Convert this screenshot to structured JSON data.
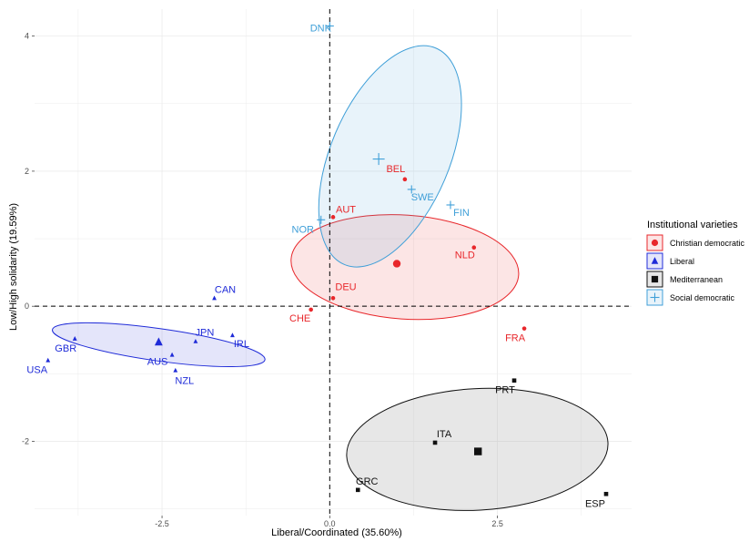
{
  "chart_data": {
    "type": "scatter",
    "xlabel": "Liberal/Coordinated (35.60%)",
    "ylabel": "Low/High solidarity (19.59%)",
    "xlim": [
      -4.4,
      4.5
    ],
    "ylim": [
      -3.1,
      4.4
    ],
    "x_ticks": [
      -2.5,
      0,
      2.5
    ],
    "x_tick_labels": [
      "-2.5",
      "0.0",
      "2.5"
    ],
    "y_ticks": [
      -2,
      0,
      2,
      4
    ],
    "y_tick_labels": [
      "-2",
      "0",
      "2",
      "4"
    ],
    "reference_lines": {
      "x": 0,
      "y": 0
    },
    "legend": {
      "title": "Institutional varieties",
      "position": "right",
      "entries": [
        "Christian democratic",
        "Liberal",
        "Mediterranean",
        "Social democratic"
      ]
    },
    "series": [
      {
        "name": "Christian democratic",
        "color": "#e8272b",
        "shape": "circle",
        "points": [
          {
            "label": "BEL",
            "x": 1.12,
            "y": 1.88
          },
          {
            "label": "AUT",
            "x": 0.05,
            "y": 1.32
          },
          {
            "label": "NLD",
            "x": 2.15,
            "y": 0.87
          },
          {
            "label": "DEU",
            "x": 0.05,
            "y": 0.12
          },
          {
            "label": "CHE",
            "x": -0.28,
            "y": -0.05
          },
          {
            "label": "FRA",
            "x": 2.9,
            "y": -0.33
          }
        ],
        "centroid": {
          "x": 1.0,
          "y": 0.63
        },
        "ellipse": {
          "cx": 1.12,
          "cy": 0.58,
          "rx": 1.7,
          "ry": 0.77,
          "angle": -4
        }
      },
      {
        "name": "Liberal",
        "color": "#1f2bd8",
        "shape": "triangle",
        "points": [
          {
            "label": "CAN",
            "x": -1.72,
            "y": 0.12
          },
          {
            "label": "JPN",
            "x": -2.0,
            "y": -0.52
          },
          {
            "label": "IRL",
            "x": -1.45,
            "y": -0.43
          },
          {
            "label": "GBR",
            "x": -3.8,
            "y": -0.48
          },
          {
            "label": "USA",
            "x": -4.2,
            "y": -0.8
          },
          {
            "label": "AUS",
            "x": -2.35,
            "y": -0.72
          },
          {
            "label": "NZL",
            "x": -2.3,
            "y": -0.95
          }
        ],
        "centroid": {
          "x": -2.55,
          "y": -0.53
        },
        "ellipse": {
          "cx": -2.55,
          "cy": -0.57,
          "rx": 1.6,
          "ry": 0.24,
          "angle": -8
        }
      },
      {
        "name": "Mediterranean",
        "color": "#111111",
        "shape": "square",
        "points": [
          {
            "label": "PRT",
            "x": 2.75,
            "y": -1.1
          },
          {
            "label": "ITA",
            "x": 1.57,
            "y": -2.02
          },
          {
            "label": "GRC",
            "x": 0.42,
            "y": -2.72
          },
          {
            "label": "ESP",
            "x": 4.12,
            "y": -2.78
          }
        ],
        "centroid": {
          "x": 2.21,
          "y": -2.15
        },
        "ellipse": {
          "cx": 2.2,
          "cy": -2.12,
          "rx": 1.95,
          "ry": 0.9,
          "angle": 3
        }
      },
      {
        "name": "Social democratic",
        "color": "#3f9fd8",
        "shape": "cross",
        "points": [
          {
            "label": "DNK",
            "x": 0.0,
            "y": 4.15
          },
          {
            "label": "SWE",
            "x": 1.22,
            "y": 1.73
          },
          {
            "label": "FIN",
            "x": 1.8,
            "y": 1.5
          },
          {
            "label": "NOR",
            "x": -0.13,
            "y": 1.28
          }
        ],
        "centroid": {
          "x": 0.73,
          "y": 2.18
        },
        "ellipse": {
          "cx": 0.9,
          "cy": 2.22,
          "rx": 1.75,
          "ry": 0.88,
          "angle": 67
        }
      }
    ]
  }
}
